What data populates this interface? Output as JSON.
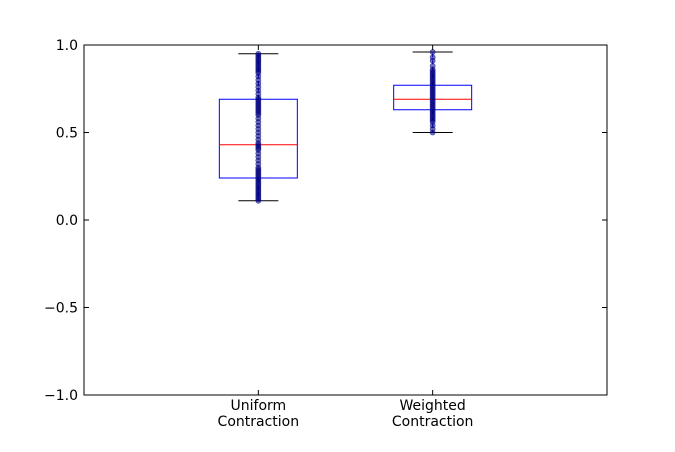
{
  "chart_data": {
    "type": "box",
    "categories": [
      {
        "line1": "Uniform",
        "line2": "Contraction"
      },
      {
        "line1": "Weighted",
        "line2": "Contraction"
      }
    ],
    "boxes": [
      {
        "whisker_low": 0.11,
        "q1": 0.24,
        "median": 0.43,
        "q3": 0.69,
        "whisker_high": 0.95,
        "points": [
          0.11,
          0.12,
          0.13,
          0.14,
          0.15,
          0.16,
          0.17,
          0.18,
          0.19,
          0.2,
          0.21,
          0.22,
          0.23,
          0.24,
          0.25,
          0.26,
          0.27,
          0.28,
          0.29,
          0.3,
          0.32,
          0.34,
          0.36,
          0.38,
          0.4,
          0.41,
          0.42,
          0.43,
          0.44,
          0.46,
          0.48,
          0.5,
          0.52,
          0.54,
          0.56,
          0.58,
          0.6,
          0.61,
          0.62,
          0.63,
          0.64,
          0.65,
          0.66,
          0.67,
          0.68,
          0.69,
          0.7,
          0.72,
          0.74,
          0.76,
          0.78,
          0.8,
          0.82,
          0.84,
          0.85,
          0.86,
          0.87,
          0.88,
          0.89,
          0.9,
          0.91,
          0.92,
          0.93,
          0.94,
          0.95
        ]
      },
      {
        "whisker_low": 0.5,
        "q1": 0.63,
        "median": 0.69,
        "q3": 0.77,
        "whisker_high": 0.96,
        "points": [
          0.5,
          0.52,
          0.54,
          0.56,
          0.57,
          0.58,
          0.59,
          0.6,
          0.61,
          0.62,
          0.63,
          0.64,
          0.65,
          0.66,
          0.67,
          0.68,
          0.69,
          0.7,
          0.71,
          0.72,
          0.73,
          0.74,
          0.75,
          0.76,
          0.77,
          0.78,
          0.79,
          0.8,
          0.81,
          0.82,
          0.83,
          0.84,
          0.85,
          0.86,
          0.88,
          0.91,
          0.93,
          0.96
        ]
      }
    ],
    "ylim": [
      -1.0,
      1.0
    ],
    "yticks": [
      "−1.0",
      "−0.5",
      "0.0",
      "0.5",
      "1.0"
    ],
    "ytick_values": [
      -1.0,
      -0.5,
      0.0,
      0.5,
      1.0
    ],
    "title": "",
    "xlabel": "",
    "ylabel": "",
    "grid": false,
    "colors": {
      "box": "#0000ff",
      "median": "#ff0000",
      "whisker": "#000000",
      "points": "#000080"
    }
  }
}
